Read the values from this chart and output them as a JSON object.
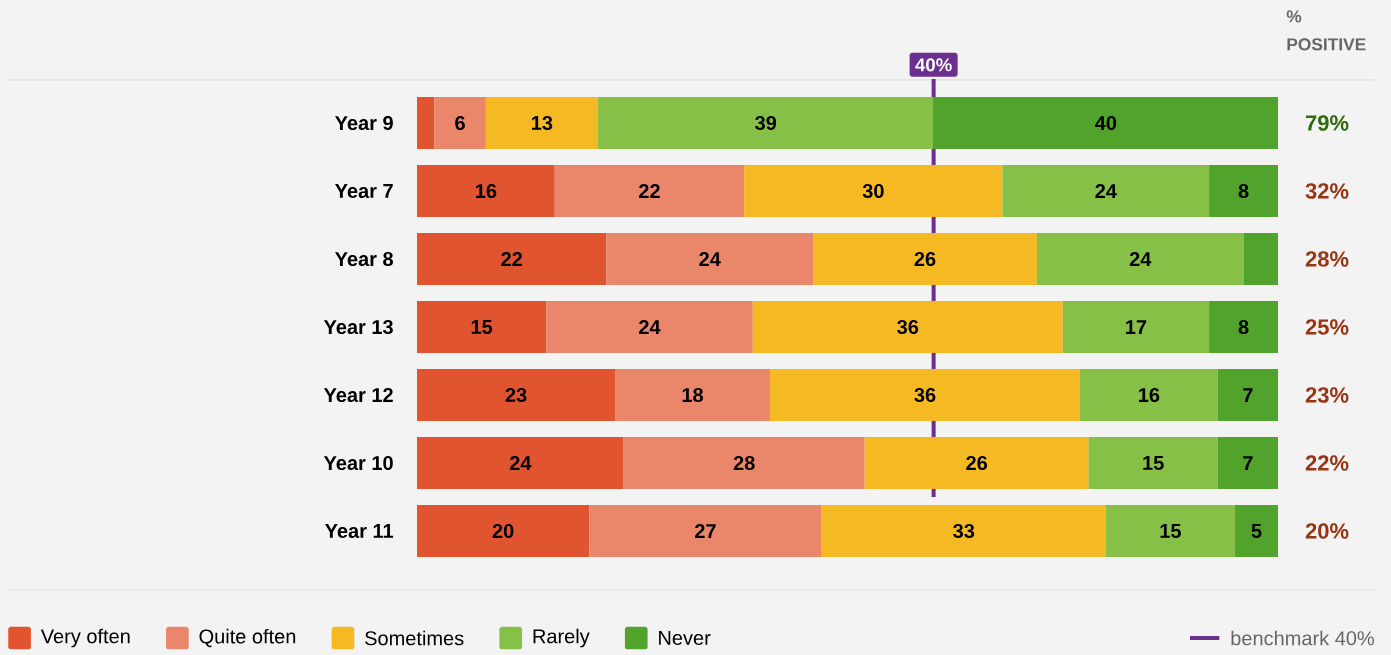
{
  "chart_data": {
    "type": "bar",
    "orientation": "horizontal",
    "stacked": true,
    "categories": [
      "Year 9",
      "Year 7",
      "Year 8",
      "Year 13",
      "Year 12",
      "Year 10",
      "Year 11"
    ],
    "xlim": [
      100,
      0
    ],
    "series": [
      {
        "name": "Never",
        "color": "#52a32c",
        "values": [
          40,
          8,
          4,
          8,
          7,
          7,
          5
        ],
        "value_labels": [
          "40",
          "8",
          null,
          "8",
          "7",
          "7",
          "5"
        ]
      },
      {
        "name": "Rarely",
        "color": "#86c046",
        "values": [
          39,
          24,
          24,
          17,
          16,
          15,
          15
        ],
        "value_labels": [
          "39",
          "24",
          "24",
          "17",
          "16",
          "15",
          "15"
        ]
      },
      {
        "name": "Sometimes",
        "color": "#f5b923",
        "values": [
          13,
          30,
          26,
          36,
          36,
          26,
          33
        ],
        "value_labels": [
          "13",
          "30",
          "26",
          "36",
          "36",
          "26",
          "33"
        ]
      },
      {
        "name": "Quite often",
        "color": "#ea876b",
        "values": [
          6,
          22,
          24,
          24,
          18,
          28,
          27
        ],
        "value_labels": [
          "6",
          "22",
          "24",
          "24",
          "18",
          "28",
          "27"
        ]
      },
      {
        "name": "Very often",
        "color": "#e0542f",
        "values": [
          2,
          16,
          22,
          15,
          23,
          24,
          20
        ],
        "value_labels": [
          null,
          "16",
          "22",
          "15",
          "23",
          "24",
          "20"
        ]
      }
    ],
    "ref_lines": [
      {
        "axis": "x",
        "value": 40,
        "label": "40%",
        "color": "#6b2f8f"
      }
    ],
    "annotations": [
      "% POSITIVE",
      "79%",
      "32%",
      "28%",
      "25%",
      "23%",
      "22%",
      "20%",
      "benchmark 40%"
    ],
    "legend": "bottom left",
    "grid": false
  }
}
